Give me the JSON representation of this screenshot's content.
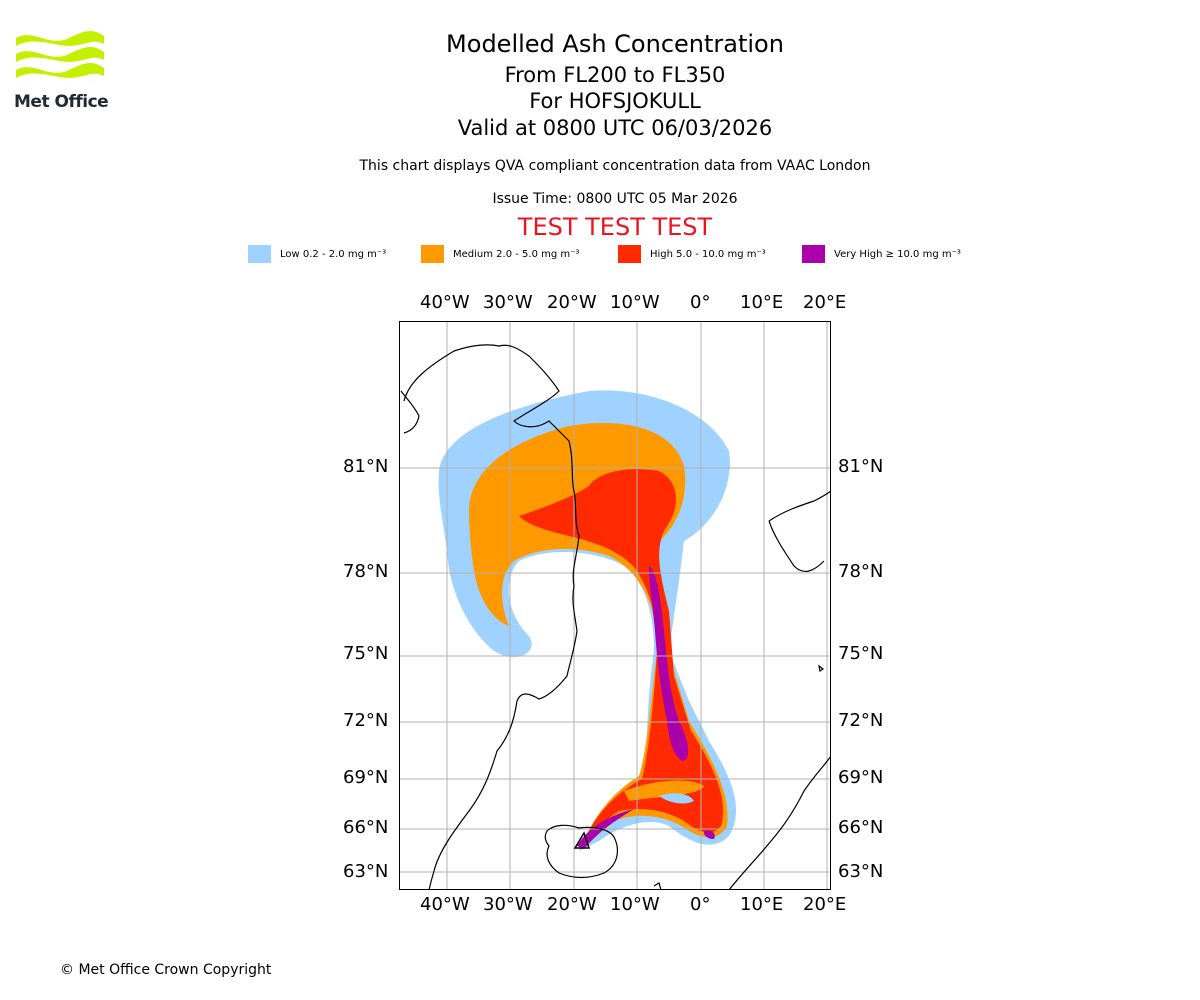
{
  "logo": {
    "text": "Met Office",
    "accent": "#c4f000"
  },
  "title": {
    "line1": "Modelled Ash Concentration",
    "line2": "From FL200 to FL350",
    "line3": "For HOFSJOKULL",
    "line4": "Valid at 0800 UTC 06/03/2026"
  },
  "subtitle": "This chart displays QVA compliant concentration data from VAAC London",
  "issue_time": "Issue Time: 0800 UTC 05 Mar 2026",
  "test_banner": "TEST TEST TEST",
  "legend": [
    {
      "label": "Low 0.2 - 2.0 mg m⁻³",
      "color": "#a0d2ff"
    },
    {
      "label": "Medium 2.0 - 5.0 mg m⁻³",
      "color": "#ff9900"
    },
    {
      "label": "High 5.0 - 10.0 mg m⁻³",
      "color": "#ff2a00"
    },
    {
      "label": "Very High  ≥  10.0 mg m⁻³",
      "color": "#aa00aa"
    }
  ],
  "map": {
    "lon_ticks": [
      "40°W",
      "30°W",
      "20°W",
      "10°W",
      "0°",
      "10°E",
      "20°E"
    ],
    "lat_ticks": [
      "81°N",
      "78°N",
      "75°N",
      "72°N",
      "69°N",
      "66°N",
      "63°N"
    ],
    "volcano": "HOFSJOKULL"
  },
  "copyright": "© Met Office Crown Copyright"
}
